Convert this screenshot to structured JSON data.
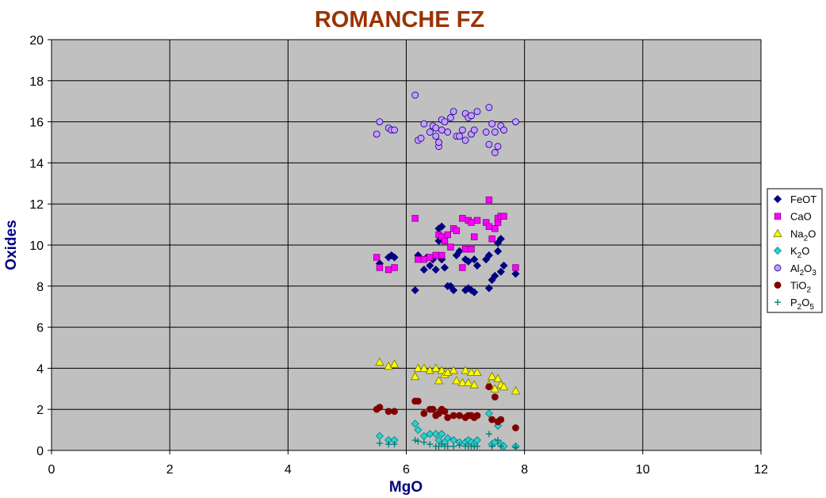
{
  "chart_data": {
    "type": "scatter",
    "title": "ROMANCHE FZ",
    "xlabel": "MgO",
    "ylabel": "Oxides",
    "xlim": [
      0,
      12
    ],
    "ylim": [
      0,
      20
    ],
    "xticks": [
      0,
      2,
      4,
      6,
      8,
      10,
      12
    ],
    "yticks": [
      0,
      2,
      4,
      6,
      8,
      10,
      12,
      14,
      16,
      18,
      20
    ],
    "grid": true,
    "legend_position": "right",
    "colors": {
      "title": "#993300",
      "axis_label": "#000080",
      "plot_bg": "#c0c0c0",
      "grid": "#000000"
    },
    "series": [
      {
        "name": "FeOT",
        "label_base": "FeOT",
        "label_sub": [],
        "marker": "diamond",
        "color": "#000080",
        "points": [
          [
            5.55,
            9.1
          ],
          [
            5.7,
            9.4
          ],
          [
            5.75,
            9.5
          ],
          [
            5.8,
            9.4
          ],
          [
            6.15,
            7.8
          ],
          [
            6.2,
            9.5
          ],
          [
            6.3,
            8.8
          ],
          [
            6.35,
            9.4
          ],
          [
            6.4,
            9.0
          ],
          [
            6.45,
            9.3
          ],
          [
            6.5,
            8.8
          ],
          [
            6.55,
            10.2
          ],
          [
            6.55,
            10.8
          ],
          [
            6.6,
            9.3
          ],
          [
            6.6,
            10.9
          ],
          [
            6.65,
            8.9
          ],
          [
            6.7,
            8.0
          ],
          [
            6.75,
            8.0
          ],
          [
            6.8,
            7.8
          ],
          [
            6.85,
            9.5
          ],
          [
            6.9,
            9.7
          ],
          [
            7.0,
            9.3
          ],
          [
            7.0,
            7.8
          ],
          [
            7.05,
            9.2
          ],
          [
            7.05,
            7.9
          ],
          [
            7.1,
            7.8
          ],
          [
            7.15,
            9.3
          ],
          [
            7.15,
            7.7
          ],
          [
            7.2,
            9.0
          ],
          [
            7.35,
            9.3
          ],
          [
            7.4,
            9.5
          ],
          [
            7.4,
            7.9
          ],
          [
            7.45,
            8.3
          ],
          [
            7.5,
            8.5
          ],
          [
            7.55,
            9.7
          ],
          [
            7.55,
            10.1
          ],
          [
            7.6,
            10.3
          ],
          [
            7.6,
            8.7
          ],
          [
            7.65,
            9.0
          ],
          [
            7.85,
            8.6
          ]
        ]
      },
      {
        "name": "CaO",
        "label_base": "CaO",
        "label_sub": [],
        "marker": "square",
        "color": "#ff00ff",
        "points": [
          [
            5.5,
            9.4
          ],
          [
            5.55,
            8.9
          ],
          [
            5.7,
            8.8
          ],
          [
            5.8,
            8.9
          ],
          [
            6.15,
            11.3
          ],
          [
            6.2,
            9.3
          ],
          [
            6.3,
            9.3
          ],
          [
            6.4,
            9.4
          ],
          [
            6.5,
            9.5
          ],
          [
            6.55,
            10.5
          ],
          [
            6.6,
            10.4
          ],
          [
            6.6,
            9.5
          ],
          [
            6.65,
            10.2
          ],
          [
            6.7,
            10.5
          ],
          [
            6.75,
            9.9
          ],
          [
            6.8,
            10.8
          ],
          [
            6.85,
            10.7
          ],
          [
            6.95,
            11.3
          ],
          [
            6.95,
            8.9
          ],
          [
            7.0,
            9.8
          ],
          [
            7.05,
            11.2
          ],
          [
            7.1,
            11.1
          ],
          [
            7.1,
            9.8
          ],
          [
            7.15,
            10.4
          ],
          [
            7.2,
            11.2
          ],
          [
            7.35,
            11.1
          ],
          [
            7.4,
            12.2
          ],
          [
            7.4,
            10.9
          ],
          [
            7.45,
            10.3
          ],
          [
            7.5,
            10.8
          ],
          [
            7.55,
            11.1
          ],
          [
            7.55,
            11.3
          ],
          [
            7.6,
            11.4
          ],
          [
            7.65,
            11.4
          ],
          [
            7.85,
            8.9
          ]
        ]
      },
      {
        "name": "Na2O",
        "label_base": "Na",
        "label_sub": [
          "2",
          "O"
        ],
        "marker": "triangle",
        "color": "#ffff00",
        "points": [
          [
            5.55,
            4.3
          ],
          [
            5.7,
            4.1
          ],
          [
            5.8,
            4.2
          ],
          [
            6.15,
            3.6
          ],
          [
            6.2,
            4.0
          ],
          [
            6.3,
            4.0
          ],
          [
            6.4,
            3.9
          ],
          [
            6.5,
            4.0
          ],
          [
            6.55,
            3.4
          ],
          [
            6.6,
            3.9
          ],
          [
            6.65,
            3.7
          ],
          [
            6.7,
            3.8
          ],
          [
            6.8,
            3.9
          ],
          [
            6.85,
            3.4
          ],
          [
            6.95,
            3.3
          ],
          [
            7.0,
            3.9
          ],
          [
            7.05,
            3.3
          ],
          [
            7.1,
            3.8
          ],
          [
            7.15,
            3.2
          ],
          [
            7.2,
            3.8
          ],
          [
            7.4,
            3.2
          ],
          [
            7.45,
            3.6
          ],
          [
            7.5,
            3.0
          ],
          [
            7.55,
            3.5
          ],
          [
            7.6,
            3.2
          ],
          [
            7.65,
            3.1
          ],
          [
            7.85,
            2.9
          ]
        ]
      },
      {
        "name": "K2O",
        "label_base": "K",
        "label_sub": [
          "2",
          "O"
        ],
        "marker": "diamond",
        "color": "#33cccc",
        "points": [
          [
            5.55,
            0.7
          ],
          [
            5.7,
            0.5
          ],
          [
            5.8,
            0.5
          ],
          [
            6.15,
            1.3
          ],
          [
            6.2,
            1.0
          ],
          [
            6.3,
            0.7
          ],
          [
            6.4,
            0.8
          ],
          [
            6.5,
            0.8
          ],
          [
            6.55,
            0.5
          ],
          [
            6.6,
            0.8
          ],
          [
            6.65,
            0.4
          ],
          [
            6.7,
            0.6
          ],
          [
            6.8,
            0.5
          ],
          [
            6.9,
            0.4
          ],
          [
            7.0,
            0.4
          ],
          [
            7.05,
            0.5
          ],
          [
            7.1,
            0.4
          ],
          [
            7.15,
            0.3
          ],
          [
            7.2,
            0.5
          ],
          [
            7.4,
            1.8
          ],
          [
            7.45,
            0.3
          ],
          [
            7.5,
            0.4
          ],
          [
            7.55,
            1.2
          ],
          [
            7.6,
            0.3
          ],
          [
            7.65,
            0.2
          ],
          [
            7.85,
            0.2
          ]
        ]
      },
      {
        "name": "Al2O3",
        "label_base": "Al",
        "label_sub": [
          "2",
          "O",
          "3"
        ],
        "marker": "circle",
        "color": "#cc99ff",
        "points": [
          [
            5.5,
            15.4
          ],
          [
            5.55,
            16.0
          ],
          [
            5.7,
            15.7
          ],
          [
            5.75,
            15.6
          ],
          [
            5.8,
            15.6
          ],
          [
            6.15,
            17.3
          ],
          [
            6.2,
            15.1
          ],
          [
            6.25,
            15.2
          ],
          [
            6.3,
            15.9
          ],
          [
            6.4,
            15.5
          ],
          [
            6.45,
            15.8
          ],
          [
            6.5,
            15.7
          ],
          [
            6.5,
            15.3
          ],
          [
            6.55,
            14.8
          ],
          [
            6.55,
            15.0
          ],
          [
            6.6,
            15.6
          ],
          [
            6.6,
            16.1
          ],
          [
            6.65,
            16.0
          ],
          [
            6.7,
            15.5
          ],
          [
            6.75,
            16.2
          ],
          [
            6.8,
            16.5
          ],
          [
            6.85,
            15.3
          ],
          [
            6.9,
            15.3
          ],
          [
            6.95,
            15.6
          ],
          [
            7.0,
            16.4
          ],
          [
            7.0,
            15.1
          ],
          [
            7.05,
            16.2
          ],
          [
            7.1,
            15.4
          ],
          [
            7.1,
            16.3
          ],
          [
            7.15,
            15.6
          ],
          [
            7.2,
            16.5
          ],
          [
            7.35,
            15.5
          ],
          [
            7.4,
            16.7
          ],
          [
            7.4,
            14.9
          ],
          [
            7.45,
            15.9
          ],
          [
            7.5,
            15.5
          ],
          [
            7.5,
            14.5
          ],
          [
            7.55,
            14.8
          ],
          [
            7.6,
            15.8
          ],
          [
            7.65,
            15.6
          ],
          [
            7.85,
            16.0
          ]
        ]
      },
      {
        "name": "TiO2",
        "label_base": "TiO",
        "label_sub": [
          "2"
        ],
        "marker": "circle",
        "color": "#800000",
        "points": [
          [
            5.5,
            2.0
          ],
          [
            5.55,
            2.1
          ],
          [
            5.7,
            1.9
          ],
          [
            5.8,
            1.9
          ],
          [
            6.15,
            2.4
          ],
          [
            6.2,
            2.4
          ],
          [
            6.3,
            1.8
          ],
          [
            6.4,
            2.0
          ],
          [
            6.45,
            2.0
          ],
          [
            6.5,
            1.7
          ],
          [
            6.55,
            1.8
          ],
          [
            6.6,
            2.0
          ],
          [
            6.65,
            1.9
          ],
          [
            6.7,
            1.6
          ],
          [
            6.8,
            1.7
          ],
          [
            6.9,
            1.7
          ],
          [
            7.0,
            1.6
          ],
          [
            7.05,
            1.7
          ],
          [
            7.1,
            1.7
          ],
          [
            7.15,
            1.6
          ],
          [
            7.2,
            1.7
          ],
          [
            7.4,
            3.1
          ],
          [
            7.45,
            1.5
          ],
          [
            7.5,
            2.6
          ],
          [
            7.55,
            1.4
          ],
          [
            7.6,
            1.5
          ],
          [
            7.85,
            1.1
          ]
        ]
      },
      {
        "name": "P2O5",
        "label_base": "P",
        "label_sub": [
          "2",
          "O",
          "5"
        ],
        "marker": "plus",
        "color": "#008080",
        "points": [
          [
            5.55,
            0.35
          ],
          [
            5.7,
            0.3
          ],
          [
            5.8,
            0.3
          ],
          [
            6.15,
            0.5
          ],
          [
            6.2,
            0.45
          ],
          [
            6.3,
            0.4
          ],
          [
            6.4,
            0.3
          ],
          [
            6.5,
            0.2
          ],
          [
            6.55,
            0.2
          ],
          [
            6.6,
            0.3
          ],
          [
            6.65,
            0.2
          ],
          [
            6.7,
            0.2
          ],
          [
            6.8,
            0.2
          ],
          [
            6.9,
            0.25
          ],
          [
            7.0,
            0.2
          ],
          [
            7.05,
            0.2
          ],
          [
            7.1,
            0.2
          ],
          [
            7.15,
            0.2
          ],
          [
            7.2,
            0.2
          ],
          [
            7.4,
            0.8
          ],
          [
            7.45,
            0.2
          ],
          [
            7.55,
            0.5
          ],
          [
            7.6,
            0.2
          ],
          [
            7.85,
            0.15
          ]
        ]
      }
    ]
  }
}
